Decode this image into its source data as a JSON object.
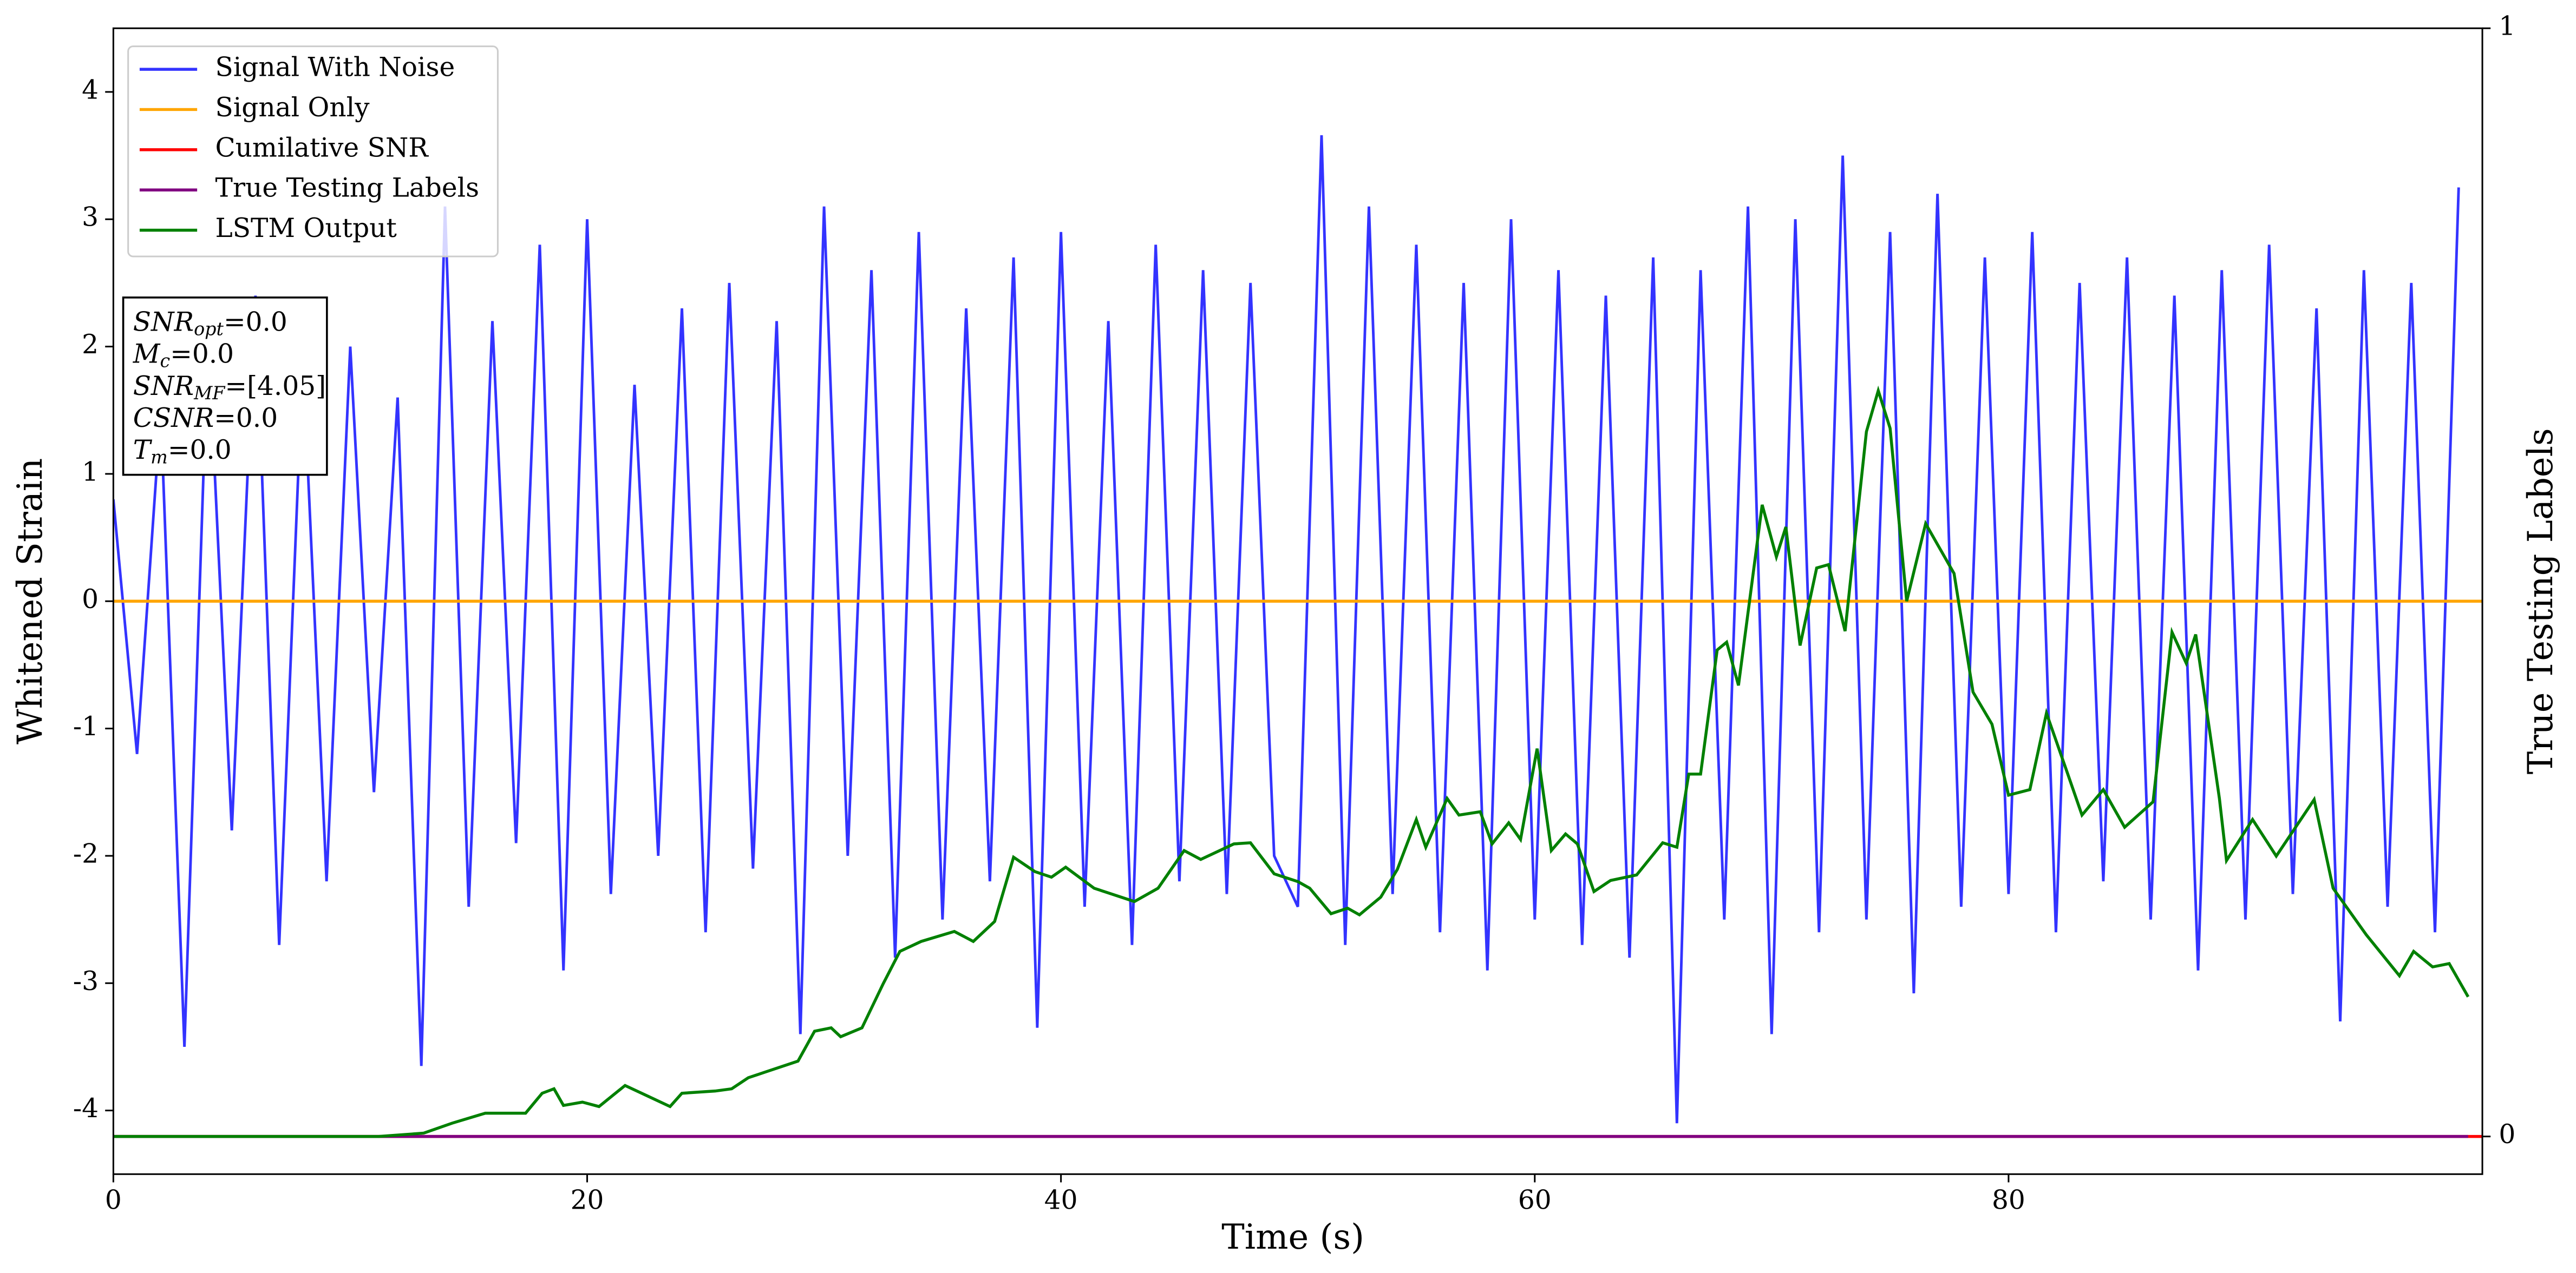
{
  "chart_data": {
    "type": "line",
    "xlabel": "Time (s)",
    "ylabel": "Whitened Strain",
    "y2label": "True Testing Labels",
    "xlim": [
      0,
      100
    ],
    "xticks": [
      0,
      20,
      40,
      60,
      80
    ],
    "ylim": [
      -4.5,
      4.5
    ],
    "yticks": [
      -4,
      -3,
      -2,
      -1,
      0,
      1,
      2,
      3,
      4
    ],
    "y2lim": [
      -0.034,
      1
    ],
    "y2ticks": [
      0,
      1
    ],
    "legend": "upper left",
    "annotations": [
      {
        "main": "SNR",
        "sub": "opt",
        "rest": "=0.0"
      },
      {
        "main": "M",
        "sub": "c",
        "rest": "=0.0"
      },
      {
        "main": "SNR",
        "sub": "MF",
        "rest": "=[4.05]"
      },
      {
        "main": "CSNR",
        "sub": null,
        "rest": "=0.0"
      },
      {
        "main": "T",
        "sub": "m",
        "rest": "=0.0"
      }
    ],
    "series": [
      {
        "name": "Signal With Noise",
        "color": "#3333ff",
        "axis": "y",
        "x": [
          0,
          1,
          2,
          3,
          4,
          5,
          6,
          7,
          8,
          9,
          10,
          11,
          12,
          13,
          14,
          15,
          16,
          17,
          18,
          19,
          20,
          21,
          22,
          23,
          24,
          25,
          26,
          27,
          28,
          29,
          30,
          31,
          32,
          33,
          34,
          35,
          36,
          37,
          38,
          39,
          40,
          41,
          42,
          43,
          44,
          45,
          46,
          47,
          48,
          49,
          50,
          51,
          52,
          53,
          54,
          55,
          56,
          57,
          58,
          59,
          60,
          61,
          62,
          63,
          64,
          65,
          66,
          67,
          68,
          69,
          70,
          71,
          72,
          73,
          74,
          75,
          76,
          77,
          78,
          79,
          80,
          81,
          82,
          83,
          84,
          85,
          86,
          87,
          88,
          89,
          90,
          91,
          92,
          93,
          94,
          95,
          96,
          97,
          98,
          99
        ],
        "values": [
          0.8,
          -1.2,
          1.5,
          -3.5,
          2.1,
          -1.8,
          2.4,
          -2.7,
          1.9,
          -2.2,
          2.0,
          -1.5,
          1.6,
          -3.65,
          3.1,
          -2.4,
          2.2,
          -1.9,
          2.8,
          -2.9,
          3.0,
          -2.3,
          1.7,
          -2.0,
          2.3,
          -2.6,
          2.5,
          -2.1,
          2.2,
          -3.4,
          3.1,
          -2.0,
          2.6,
          -2.8,
          2.9,
          -2.5,
          2.3,
          -2.2,
          2.7,
          -3.35,
          2.9,
          -2.4,
          2.2,
          -2.7,
          2.8,
          -2.2,
          2.6,
          -2.3,
          2.5,
          -2.0,
          -2.4,
          3.66,
          -2.7,
          3.1,
          -2.3,
          2.8,
          -2.6,
          2.5,
          -2.9,
          3.0,
          -2.5,
          2.6,
          -2.7,
          2.4,
          -2.8,
          2.7,
          -4.1,
          2.6,
          -2.5,
          3.1,
          -3.4,
          3.0,
          -2.6,
          3.5,
          -2.5,
          2.9,
          -3.08,
          3.2,
          -2.4,
          2.7,
          -2.3,
          2.9,
          -2.6,
          2.5,
          -2.2,
          2.7,
          -2.5,
          2.4,
          -2.9,
          2.6,
          -2.5,
          2.8,
          -2.3,
          2.3,
          -3.3,
          2.6,
          -2.4,
          2.5,
          -2.6,
          3.25
        ]
      },
      {
        "name": "Signal Only",
        "color": "#ffa500",
        "axis": "y",
        "x": [
          0,
          100
        ],
        "values": [
          0,
          0
        ]
      },
      {
        "name": "Cumilative SNR",
        "color": "#ff0000",
        "axis": "y2",
        "x": [
          0,
          100
        ],
        "values": [
          0,
          0
        ]
      },
      {
        "name": "True Testing Labels",
        "color": "#800080",
        "axis": "y2",
        "x": [
          0,
          99.4
        ],
        "values": [
          0,
          0
        ]
      },
      {
        "name": "LSTM Output",
        "color": "#008000",
        "axis": "y2",
        "x": [
          0,
          11.2,
          13.1,
          14.3,
          15.7,
          17.4,
          18.1,
          18.6,
          19.0,
          19.8,
          20.5,
          21.6,
          22.6,
          23.5,
          24.0,
          25.4,
          26.1,
          26.8,
          27.5,
          28.9,
          29.6,
          30.3,
          30.7,
          31.6,
          32.5,
          33.2,
          34.1,
          35.5,
          36.3,
          37.2,
          38.0,
          38.9,
          39.6,
          40.2,
          41.4,
          43.1,
          44.1,
          45.2,
          45.9,
          47.3,
          48.0,
          49.0,
          50.0,
          50.5,
          51.4,
          52.1,
          52.6,
          53.5,
          54.2,
          55.0,
          55.4,
          56.3,
          56.8,
          57.7,
          58.2,
          58.9,
          59.4,
          60.1,
          60.7,
          61.3,
          61.8,
          62.5,
          63.2,
          64.3,
          65.4,
          66.0,
          66.5,
          67.0,
          67.7,
          68.1,
          68.6,
          69.6,
          70.2,
          70.6,
          71.2,
          71.9,
          72.4,
          73.1,
          74.0,
          74.5,
          75.0,
          75.7,
          76.5,
          77.7,
          78.5,
          79.3,
          80.0,
          80.9,
          81.6,
          82.5,
          83.1,
          84.0,
          84.9,
          86.1,
          86.9,
          87.5,
          87.9,
          88.9,
          89.2,
          90.3,
          91.3,
          92.9,
          93.7,
          95.1,
          96.5,
          97.1,
          97.9,
          98.6,
          99.4
        ],
        "values": [
          0,
          0,
          0.003,
          0.012,
          0.021,
          0.021,
          0.039,
          0.043,
          0.028,
          0.031,
          0.027,
          0.046,
          0.036,
          0.027,
          0.039,
          0.041,
          0.043,
          0.053,
          0.058,
          0.068,
          0.095,
          0.098,
          0.09,
          0.098,
          0.138,
          0.167,
          0.176,
          0.185,
          0.176,
          0.194,
          0.252,
          0.239,
          0.234,
          0.243,
          0.224,
          0.212,
          0.224,
          0.258,
          0.25,
          0.264,
          0.265,
          0.237,
          0.23,
          0.224,
          0.201,
          0.206,
          0.2,
          0.216,
          0.241,
          0.286,
          0.261,
          0.305,
          0.29,
          0.293,
          0.264,
          0.283,
          0.268,
          0.35,
          0.258,
          0.273,
          0.264,
          0.221,
          0.231,
          0.236,
          0.265,
          0.261,
          0.327,
          0.327,
          0.439,
          0.446,
          0.407,
          0.57,
          0.523,
          0.55,
          0.443,
          0.513,
          0.516,
          0.456,
          0.636,
          0.673,
          0.639,
          0.483,
          0.553,
          0.508,
          0.401,
          0.372,
          0.308,
          0.313,
          0.382,
          0.327,
          0.29,
          0.313,
          0.279,
          0.302,
          0.455,
          0.427,
          0.453,
          0.305,
          0.249,
          0.286,
          0.253,
          0.304,
          0.224,
          0.182,
          0.145,
          0.167,
          0.153,
          0.156,
          0.126
        ]
      }
    ]
  }
}
